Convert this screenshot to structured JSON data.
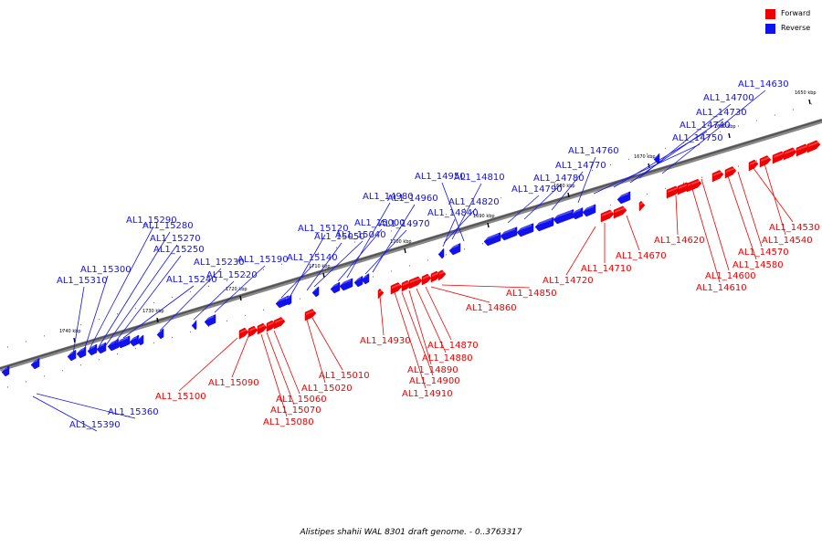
{
  "caption": "Alistipes shahii WAL 8301 draft genome. - 0..3763317",
  "legend": [
    {
      "label": "Forward",
      "color": "#ee0000"
    },
    {
      "label": "Reverse",
      "color": "#1111ee"
    }
  ],
  "colors": {
    "forward": "#ee0000",
    "reverse": "#1111ee",
    "backbone": "#555555"
  },
  "scale_labels": [
    "1650 kbp",
    "1660 kbp",
    "1670 kbp",
    "1680 kbp",
    "1690 kbp",
    "1700 kbp",
    "1710 kbp",
    "1720 kbp",
    "1730 kbp",
    "1740 kbp"
  ],
  "reverse_genes": [
    "AL1_14630",
    "AL1_14700",
    "AL1_14730",
    "AL1_14740",
    "AL1_14750",
    "AL1_14760",
    "AL1_14770",
    "AL1_14780",
    "AL1_14790",
    "AL1_14810",
    "AL1_14820",
    "AL1_14840",
    "AL1_14950",
    "AL1_14960",
    "AL1_14970",
    "AL1_14980",
    "AL1_15000",
    "AL1_15040",
    "AL1_15050",
    "AL1_15120",
    "AL1_15140",
    "AL1_15190",
    "AL1_15220",
    "AL1_15230",
    "AL1_15240",
    "AL1_15250",
    "AL1_15270",
    "AL1_15280",
    "AL1_15290",
    "AL1_15300",
    "AL1_15310",
    "AL1_15360",
    "AL1_15390"
  ],
  "forward_genes": [
    "AL1_14530",
    "AL1_14540",
    "AL1_14570",
    "AL1_14580",
    "AL1_14600",
    "AL1_14610",
    "AL1_14620",
    "AL1_14670",
    "AL1_14710",
    "AL1_14720",
    "AL1_14850",
    "AL1_14860",
    "AL1_14870",
    "AL1_14880",
    "AL1_14890",
    "AL1_14900",
    "AL1_14910",
    "AL1_14930",
    "AL1_15010",
    "AL1_15020",
    "AL1_15060",
    "AL1_15070",
    "AL1_15080",
    "AL1_15090",
    "AL1_15100"
  ]
}
